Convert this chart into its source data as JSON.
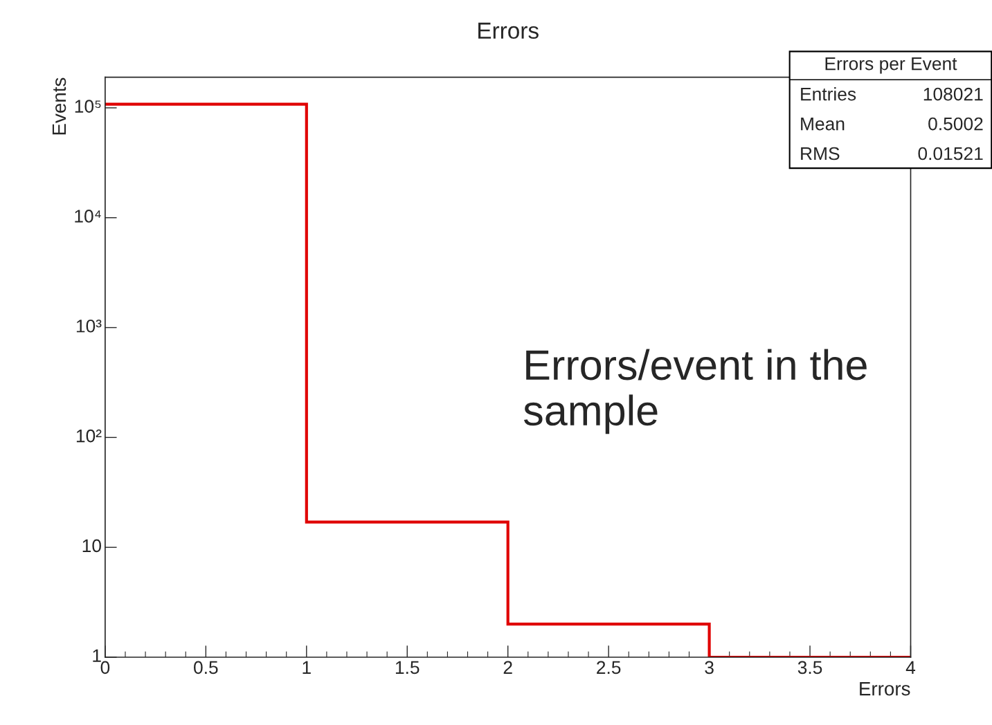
{
  "chart_data": {
    "type": "histogram",
    "title": "Errors",
    "xlabel": "Errors",
    "ylabel": "Events",
    "bins": [
      0,
      1,
      2,
      3,
      4
    ],
    "values": [
      108002,
      17,
      2,
      1
    ],
    "color": "#e00000",
    "log": "y",
    "xlim": [
      0,
      4
    ],
    "ylim": [
      1,
      190000
    ],
    "xticks": [
      0,
      0.5,
      1,
      1.5,
      2,
      2.5,
      3,
      3.5,
      4
    ],
    "yticks": [
      1,
      10,
      {
        "value": 100,
        "label": "10²"
      },
      {
        "value": 1000,
        "label": "10³"
      },
      {
        "value": 10000,
        "label": "10⁴"
      },
      {
        "value": 100000,
        "label": "10⁵"
      }
    ],
    "grid": false,
    "annotations": [
      "Errors per Event",
      "Entries",
      "108021",
      "Mean",
      "0.5002",
      "RMS",
      "0.01521",
      "Errors/event in the sample"
    ]
  }
}
